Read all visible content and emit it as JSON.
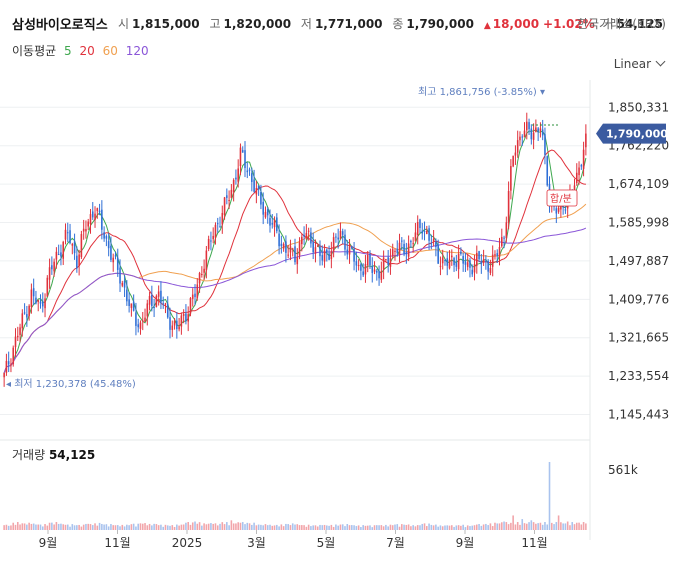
{
  "header": {
    "title": "삼성바이오로직스",
    "open_label": "시",
    "open": "1,815,000",
    "high_label": "고",
    "high": "1,820,000",
    "low_label": "저",
    "low": "1,771,000",
    "close_label": "종",
    "close": "1,790,000",
    "change": "18,000",
    "change_pct": "+1.02%",
    "volume_label": "거",
    "volume": "54,125",
    "exchange": "한국거래소(KRX)"
  },
  "ma_legend": {
    "label": "이동평균",
    "periods": [
      {
        "text": "5",
        "color": "#3fa84f"
      },
      {
        "text": "20",
        "color": "#e0323c"
      },
      {
        "text": "60",
        "color": "#f0a050"
      },
      {
        "text": "120",
        "color": "#8a56d8"
      }
    ]
  },
  "scale_mode": "Linear",
  "volume_panel": {
    "label": "거래량",
    "value": "54,125",
    "axis_tick": "561k"
  },
  "colors": {
    "up": "#e0323c",
    "down": "#2f6fd6",
    "highlow": "#5f7fbf",
    "badge": "#3b5ba0"
  },
  "chart_data": {
    "type": "candlestick",
    "y_ticks": [
      "1,850,331",
      "1,762,220",
      "1,674,109",
      "1,585,998",
      "1,497,887",
      "1,409,776",
      "1,321,665",
      "1,233,554",
      "1,145,443"
    ],
    "ylim": [
      1110000,
      1890000
    ],
    "x_ticks": [
      "9월",
      "11월",
      "2025",
      "3월",
      "5월",
      "7월",
      "9월",
      "11월"
    ],
    "grid": true,
    "last_price": "1,790,000",
    "annotations": {
      "high_text": "최고 1,861,756 (-3.85%)",
      "low_text": "최저 1,230,378 (45.48%)",
      "marker_text": "합/분"
    },
    "price_path": [
      1232000,
      1300000,
      1360000,
      1420000,
      1390000,
      1470000,
      1520000,
      1560000,
      1500000,
      1580000,
      1620000,
      1560000,
      1500000,
      1450000,
      1380000,
      1350000,
      1400000,
      1420000,
      1370000,
      1340000,
      1380000,
      1420000,
      1500000,
      1560000,
      1610000,
      1660000,
      1740000,
      1700000,
      1640000,
      1600000,
      1560000,
      1520000,
      1510000,
      1560000,
      1540000,
      1500000,
      1530000,
      1560000,
      1520000,
      1480000,
      1490000,
      1470000,
      1490000,
      1530000,
      1520000,
      1550000,
      1580000,
      1540000,
      1500000,
      1490000,
      1510000,
      1480000,
      1500000,
      1490000,
      1500000,
      1560000,
      1740000,
      1800000,
      1790000,
      1810000,
      1640000,
      1610000,
      1640000,
      1680000,
      1790000
    ],
    "volume_path": [
      40,
      60,
      55,
      50,
      45,
      60,
      50,
      45,
      40,
      50,
      55,
      45,
      40,
      42,
      48,
      55,
      50,
      40,
      38,
      45,
      60,
      70,
      55,
      50,
      65,
      80,
      60,
      55,
      45,
      40,
      42,
      50,
      45,
      40,
      38,
      40,
      42,
      45,
      40,
      38,
      36,
      40,
      42,
      45,
      44,
      40,
      50,
      42,
      38,
      36,
      40,
      38,
      45,
      50,
      60,
      70,
      120,
      90,
      80,
      60,
      561,
      120,
      70,
      60,
      54
    ]
  }
}
